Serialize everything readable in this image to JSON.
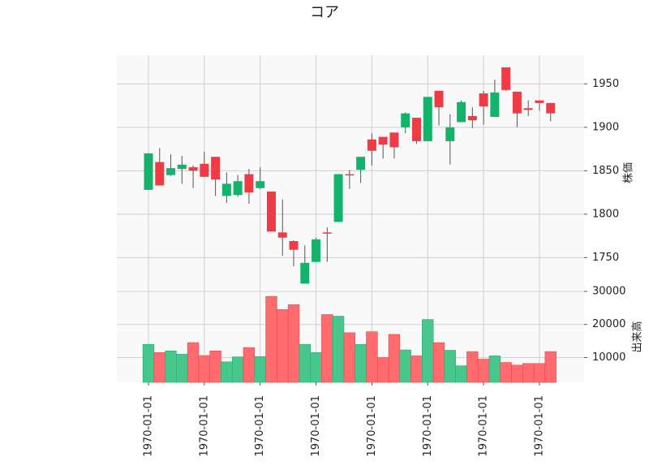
{
  "chart_data": [
    {
      "type": "candlestick",
      "title": "コア",
      "ylabel": "株価",
      "ylim": [
        1712,
        1983
      ],
      "yticks": [
        1750,
        1800,
        1850,
        1900,
        1950
      ],
      "xticks": [
        "1970-01-01",
        "1970-01-01",
        "1970-01-01",
        "1970-01-01",
        "1970-01-01",
        "1970-01-01",
        "1970-01-01",
        "1970-01-01"
      ],
      "xtick_indices": [
        0,
        5,
        10,
        15,
        20,
        25,
        30,
        35
      ],
      "up_color": "#ef3b45",
      "down_color": "#14b36b",
      "grid": true,
      "candles": [
        {
          "o": 1870,
          "h": 1870,
          "l": 1828,
          "c": 1828
        },
        {
          "o": 1833,
          "h": 1876,
          "l": 1833,
          "c": 1860
        },
        {
          "o": 1853,
          "h": 1869,
          "l": 1844,
          "c": 1845
        },
        {
          "o": 1857,
          "h": 1867,
          "l": 1835,
          "c": 1852
        },
        {
          "o": 1850,
          "h": 1856,
          "l": 1830,
          "c": 1854
        },
        {
          "o": 1843,
          "h": 1872,
          "l": 1843,
          "c": 1858
        },
        {
          "o": 1840,
          "h": 1866,
          "l": 1821,
          "c": 1866
        },
        {
          "o": 1835,
          "h": 1848,
          "l": 1813,
          "c": 1821
        },
        {
          "o": 1838,
          "h": 1845,
          "l": 1820,
          "c": 1822
        },
        {
          "o": 1825,
          "h": 1852,
          "l": 1812,
          "c": 1846
        },
        {
          "o": 1838,
          "h": 1854,
          "l": 1829,
          "c": 1830
        },
        {
          "o": 1780,
          "h": 1826,
          "l": 1780,
          "c": 1826
        },
        {
          "o": 1773,
          "h": 1817,
          "l": 1752,
          "c": 1779
        },
        {
          "o": 1759,
          "h": 1770,
          "l": 1740,
          "c": 1769
        },
        {
          "o": 1744,
          "h": 1764,
          "l": 1720,
          "c": 1720
        },
        {
          "o": 1771,
          "h": 1773,
          "l": 1745,
          "c": 1745
        },
        {
          "o": 1778,
          "h": 1785,
          "l": 1745,
          "c": 1779
        },
        {
          "o": 1846,
          "h": 1846,
          "l": 1791,
          "c": 1791
        },
        {
          "o": 1845,
          "h": 1851,
          "l": 1829,
          "c": 1846
        },
        {
          "o": 1866,
          "h": 1866,
          "l": 1836,
          "c": 1851
        },
        {
          "o": 1873,
          "h": 1893,
          "l": 1856,
          "c": 1886
        },
        {
          "o": 1880,
          "h": 1888,
          "l": 1864,
          "c": 1889
        },
        {
          "o": 1877,
          "h": 1893,
          "l": 1864,
          "c": 1894
        },
        {
          "o": 1916,
          "h": 1917,
          "l": 1893,
          "c": 1900
        },
        {
          "o": 1884,
          "h": 1911,
          "l": 1881,
          "c": 1911
        },
        {
          "o": 1935,
          "h": 1935,
          "l": 1884,
          "c": 1884
        },
        {
          "o": 1923,
          "h": 1942,
          "l": 1902,
          "c": 1942
        },
        {
          "o": 1900,
          "h": 1915,
          "l": 1857,
          "c": 1884
        },
        {
          "o": 1929,
          "h": 1931,
          "l": 1906,
          "c": 1906
        },
        {
          "o": 1908,
          "h": 1923,
          "l": 1899,
          "c": 1913
        },
        {
          "o": 1924,
          "h": 1942,
          "l": 1903,
          "c": 1939
        },
        {
          "o": 1940,
          "h": 1955,
          "l": 1912,
          "c": 1912
        },
        {
          "o": 1943,
          "h": 1969,
          "l": 1942,
          "c": 1969
        },
        {
          "o": 1916,
          "h": 1941,
          "l": 1900,
          "c": 1941
        },
        {
          "o": 1920,
          "h": 1931,
          "l": 1913,
          "c": 1922
        },
        {
          "o": 1928,
          "h": 1930,
          "l": 1919,
          "c": 1931
        },
        {
          "o": 1916,
          "h": 1928,
          "l": 1907,
          "c": 1928
        }
      ]
    },
    {
      "type": "bar",
      "ylabel": "出来高",
      "ylim": [
        2500,
        30000
      ],
      "yticks": [
        10000,
        20000,
        30000
      ],
      "values": [
        14000,
        11500,
        12000,
        11000,
        14500,
        10600,
        12000,
        8700,
        10200,
        13000,
        10300,
        28500,
        24500,
        26000,
        14000,
        11500,
        23000,
        22500,
        17500,
        14000,
        17800,
        10000,
        17000,
        12300,
        10500,
        21500,
        14500,
        12200,
        7500,
        11800,
        9500,
        10500,
        8500,
        7700,
        8200,
        8200,
        11800
      ]
    }
  ]
}
